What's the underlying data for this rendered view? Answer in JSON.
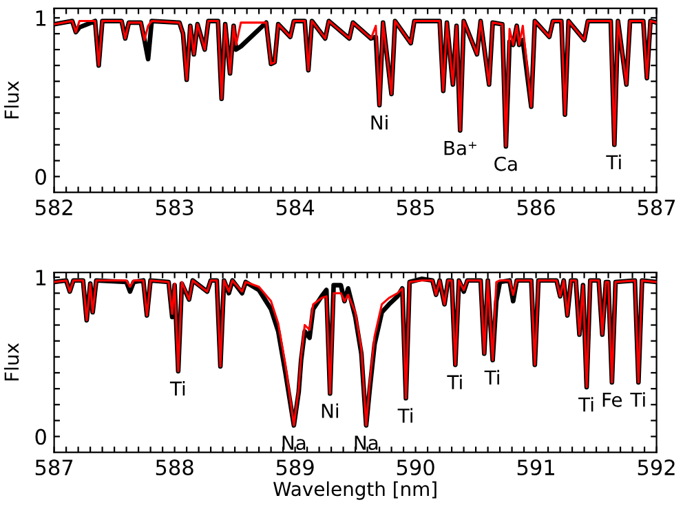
{
  "chart_data": [
    {
      "type": "line",
      "ylabel": "Flux",
      "xlim": [
        582,
        587
      ],
      "ylim": [
        -0.1,
        1.06
      ],
      "line_style": "solid",
      "marker": "none",
      "xticks": [
        582,
        {
          "value": 582.1,
          "label": null
        },
        {
          "value": 582.2,
          "label": null
        },
        {
          "value": 582.3,
          "label": null
        },
        {
          "value": 582.4,
          "label": null
        },
        {
          "value": 582.5,
          "label": null
        },
        {
          "value": 582.6,
          "label": null
        },
        {
          "value": 582.7,
          "label": null
        },
        {
          "value": 582.8,
          "label": null
        },
        {
          "value": 582.9,
          "label": null
        },
        583,
        {
          "value": 583.1,
          "label": null
        },
        {
          "value": 583.2,
          "label": null
        },
        {
          "value": 583.3,
          "label": null
        },
        {
          "value": 583.4,
          "label": null
        },
        {
          "value": 583.5,
          "label": null
        },
        {
          "value": 583.6,
          "label": null
        },
        {
          "value": 583.7,
          "label": null
        },
        {
          "value": 583.8,
          "label": null
        },
        {
          "value": 583.9,
          "label": null
        },
        584,
        {
          "value": 584.1,
          "label": null
        },
        {
          "value": 584.2,
          "label": null
        },
        {
          "value": 584.3,
          "label": null
        },
        {
          "value": 584.4,
          "label": null
        },
        {
          "value": 584.5,
          "label": null
        },
        {
          "value": 584.6,
          "label": null
        },
        {
          "value": 584.7,
          "label": null
        },
        {
          "value": 584.8,
          "label": null
        },
        {
          "value": 584.9,
          "label": null
        },
        585,
        {
          "value": 585.1,
          "label": null
        },
        {
          "value": 585.2,
          "label": null
        },
        {
          "value": 585.3,
          "label": null
        },
        {
          "value": 585.4,
          "label": null
        },
        {
          "value": 585.5,
          "label": null
        },
        {
          "value": 585.6,
          "label": null
        },
        {
          "value": 585.7,
          "label": null
        },
        {
          "value": 585.8,
          "label": null
        },
        {
          "value": 585.9,
          "label": null
        },
        586,
        {
          "value": 586.1,
          "label": null
        },
        {
          "value": 586.2,
          "label": null
        },
        {
          "value": 586.3,
          "label": null
        },
        {
          "value": 586.4,
          "label": null
        },
        {
          "value": 586.5,
          "label": null
        },
        {
          "value": 586.6,
          "label": null
        },
        {
          "value": 586.7,
          "label": null
        },
        {
          "value": 586.8,
          "label": null
        },
        {
          "value": 586.9,
          "label": null
        },
        587
      ],
      "yticks": [
        0,
        {
          "value": 0.1,
          "label": null
        },
        {
          "value": 0.2,
          "label": null
        },
        {
          "value": 0.3,
          "label": null
        },
        {
          "value": 0.4,
          "label": null
        },
        {
          "value": 0.5,
          "label": null
        },
        {
          "value": 0.6,
          "label": null
        },
        {
          "value": 0.7,
          "label": null
        },
        {
          "value": 0.8,
          "label": null
        },
        {
          "value": 0.9,
          "label": null
        },
        1
      ],
      "x": [
        582.0,
        582.15,
        582.18,
        582.21,
        582.34,
        582.37,
        582.4,
        582.56,
        582.59,
        582.62,
        582.72,
        582.75,
        582.78,
        582.81,
        583.04,
        583.07,
        583.1,
        583.13,
        583.16,
        583.19,
        583.25,
        583.28,
        583.36,
        583.39,
        583.42,
        583.46,
        583.49,
        583.51,
        583.55,
        583.76,
        583.8,
        583.83,
        583.86,
        583.96,
        583.99,
        584.08,
        584.11,
        584.14,
        584.25,
        584.28,
        584.45,
        584.48,
        584.63,
        584.67,
        584.7,
        584.73,
        584.8,
        584.83,
        584.96,
        584.99,
        585.2,
        585.23,
        585.26,
        585.31,
        585.34,
        585.37,
        585.4,
        585.51,
        585.54,
        585.61,
        585.64,
        585.72,
        585.75,
        585.78,
        585.81,
        585.84,
        585.86,
        585.89,
        585.96,
        585.99,
        586.11,
        586.14,
        586.21,
        586.24,
        586.27,
        586.4,
        586.43,
        586.62,
        586.65,
        586.68,
        586.75,
        586.78,
        586.89,
        586.92,
        586.95,
        587.0
      ],
      "series": [
        {
          "color": "#000000",
          "values": [
            0.96,
            0.98,
            0.91,
            0.94,
            0.98,
            0.7,
            0.98,
            0.98,
            0.87,
            0.97,
            0.97,
            0.86,
            0.74,
            0.98,
            0.97,
            0.9,
            0.61,
            0.95,
            0.77,
            0.96,
            0.8,
            0.98,
            0.98,
            0.49,
            0.96,
            0.65,
            0.95,
            0.8,
            0.82,
            0.97,
            0.71,
            0.72,
            0.96,
            0.88,
            0.98,
            0.98,
            0.67,
            0.98,
            0.87,
            0.98,
            0.87,
            0.97,
            0.87,
            0.88,
            0.45,
            0.97,
            0.52,
            0.98,
            0.84,
            0.98,
            0.98,
            0.54,
            0.97,
            0.58,
            0.95,
            0.29,
            0.98,
            0.77,
            0.98,
            0.58,
            0.97,
            0.96,
            0.19,
            0.85,
            0.83,
            0.95,
            0.83,
            0.86,
            0.44,
            0.98,
            0.88,
            0.98,
            0.98,
            0.39,
            0.98,
            0.86,
            0.98,
            0.98,
            0.2,
            0.98,
            0.58,
            0.98,
            0.98,
            0.62,
            0.98,
            0.97
          ]
        },
        {
          "color": "#ff0000",
          "values": [
            0.96,
            0.98,
            0.91,
            0.98,
            0.98,
            0.7,
            0.98,
            0.98,
            0.87,
            0.97,
            0.97,
            0.86,
            0.95,
            0.98,
            0.97,
            0.9,
            0.61,
            0.95,
            0.77,
            0.96,
            0.8,
            0.98,
            0.98,
            0.49,
            0.96,
            0.65,
            0.95,
            0.83,
            0.97,
            0.97,
            0.71,
            0.72,
            0.96,
            0.88,
            0.98,
            0.98,
            0.67,
            0.98,
            0.87,
            0.98,
            0.87,
            0.97,
            0.87,
            0.95,
            0.45,
            0.97,
            0.52,
            0.98,
            0.84,
            0.98,
            0.98,
            0.54,
            0.97,
            0.58,
            0.95,
            0.29,
            0.98,
            0.77,
            0.98,
            0.58,
            0.97,
            0.96,
            0.19,
            0.93,
            0.83,
            0.95,
            0.83,
            0.95,
            0.44,
            0.98,
            0.88,
            0.98,
            0.98,
            0.39,
            0.98,
            0.86,
            0.98,
            0.98,
            0.2,
            0.98,
            0.58,
            0.98,
            0.98,
            0.62,
            0.98,
            0.97
          ]
        }
      ],
      "annotations": [
        {
          "text": "Ni",
          "x": 584.7,
          "y": 0.45
        },
        {
          "text": "Ba⁺",
          "x": 585.37,
          "y": 0.29
        },
        {
          "text": "Ca",
          "x": 585.75,
          "y": 0.19
        },
        {
          "text": "Ti",
          "x": 586.65,
          "y": 0.2
        }
      ]
    },
    {
      "type": "line",
      "xlabel": "Wavelength [nm]",
      "ylabel": "Flux",
      "xlim": [
        587,
        592
      ],
      "ylim": [
        -0.1,
        1.03
      ],
      "line_style": "solid",
      "marker": "none",
      "xticks": [
        587,
        {
          "value": 587.1,
          "label": null
        },
        {
          "value": 587.2,
          "label": null
        },
        {
          "value": 587.3,
          "label": null
        },
        {
          "value": 587.4,
          "label": null
        },
        {
          "value": 587.5,
          "label": null
        },
        {
          "value": 587.6,
          "label": null
        },
        {
          "value": 587.7,
          "label": null
        },
        {
          "value": 587.8,
          "label": null
        },
        {
          "value": 587.9,
          "label": null
        },
        588,
        {
          "value": 588.1,
          "label": null
        },
        {
          "value": 588.2,
          "label": null
        },
        {
          "value": 588.3,
          "label": null
        },
        {
          "value": 588.4,
          "label": null
        },
        {
          "value": 588.5,
          "label": null
        },
        {
          "value": 588.6,
          "label": null
        },
        {
          "value": 588.7,
          "label": null
        },
        {
          "value": 588.8,
          "label": null
        },
        {
          "value": 588.9,
          "label": null
        },
        589,
        {
          "value": 589.1,
          "label": null
        },
        {
          "value": 589.2,
          "label": null
        },
        {
          "value": 589.3,
          "label": null
        },
        {
          "value": 589.4,
          "label": null
        },
        {
          "value": 589.5,
          "label": null
        },
        {
          "value": 589.6,
          "label": null
        },
        {
          "value": 589.7,
          "label": null
        },
        {
          "value": 589.8,
          "label": null
        },
        {
          "value": 589.9,
          "label": null
        },
        590,
        {
          "value": 590.1,
          "label": null
        },
        {
          "value": 590.2,
          "label": null
        },
        {
          "value": 590.3,
          "label": null
        },
        {
          "value": 590.4,
          "label": null
        },
        {
          "value": 590.5,
          "label": null
        },
        {
          "value": 590.6,
          "label": null
        },
        {
          "value": 590.7,
          "label": null
        },
        {
          "value": 590.8,
          "label": null
        },
        {
          "value": 590.9,
          "label": null
        },
        591,
        {
          "value": 591.1,
          "label": null
        },
        {
          "value": 591.2,
          "label": null
        },
        {
          "value": 591.3,
          "label": null
        },
        {
          "value": 591.4,
          "label": null
        },
        {
          "value": 591.5,
          "label": null
        },
        {
          "value": 591.6,
          "label": null
        },
        {
          "value": 591.7,
          "label": null
        },
        {
          "value": 591.8,
          "label": null
        },
        {
          "value": 591.9,
          "label": null
        },
        592
      ],
      "yticks": [
        0,
        {
          "value": 0.1,
          "label": null
        },
        {
          "value": 0.2,
          "label": null
        },
        {
          "value": 0.3,
          "label": null
        },
        {
          "value": 0.4,
          "label": null
        },
        {
          "value": 0.5,
          "label": null
        },
        {
          "value": 0.6,
          "label": null
        },
        {
          "value": 0.7,
          "label": null
        },
        {
          "value": 0.8,
          "label": null
        },
        {
          "value": 0.9,
          "label": null
        },
        1
      ],
      "x": [
        587.0,
        587.1,
        587.13,
        587.16,
        587.24,
        587.27,
        587.3,
        587.32,
        587.35,
        587.6,
        587.63,
        587.66,
        587.74,
        587.77,
        587.8,
        587.95,
        587.98,
        588.0,
        588.03,
        588.06,
        588.12,
        588.15,
        588.27,
        588.3,
        588.35,
        588.38,
        588.41,
        588.45,
        588.48,
        588.56,
        588.59,
        588.7,
        588.8,
        588.86,
        588.92,
        588.99,
        589.03,
        589.05,
        589.08,
        589.12,
        589.15,
        589.22,
        589.26,
        589.29,
        589.32,
        589.38,
        589.41,
        589.44,
        589.5,
        589.55,
        589.59,
        589.62,
        589.66,
        589.72,
        589.78,
        589.85,
        589.89,
        589.92,
        589.95,
        590.05,
        590.14,
        590.17,
        590.2,
        590.24,
        590.27,
        590.3,
        590.33,
        590.36,
        590.4,
        590.43,
        590.54,
        590.57,
        590.6,
        590.64,
        590.67,
        590.7,
        590.78,
        590.81,
        590.84,
        590.96,
        590.99,
        591.02,
        591.17,
        591.2,
        591.23,
        591.26,
        591.29,
        591.33,
        591.36,
        591.39,
        591.42,
        591.45,
        591.52,
        591.55,
        591.58,
        591.6,
        591.63,
        591.66,
        591.82,
        591.85,
        591.88,
        592.0
      ],
      "series": [
        {
          "color": "#000000",
          "values": [
            0.97,
            0.98,
            0.91,
            0.98,
            0.98,
            0.73,
            0.96,
            0.78,
            0.98,
            0.97,
            0.91,
            0.97,
            0.98,
            0.76,
            0.98,
            0.97,
            0.75,
            0.95,
            0.41,
            0.96,
            0.86,
            0.98,
            0.91,
            0.98,
            0.98,
            0.44,
            0.98,
            0.9,
            0.98,
            0.9,
            0.97,
            0.92,
            0.8,
            0.66,
            0.4,
            0.07,
            0.28,
            0.48,
            0.66,
            0.62,
            0.8,
            0.88,
            0.92,
            0.27,
            0.95,
            0.95,
            0.85,
            0.93,
            0.75,
            0.52,
            0.07,
            0.3,
            0.58,
            0.78,
            0.83,
            0.88,
            0.93,
            0.24,
            0.97,
            0.99,
            0.98,
            0.89,
            0.98,
            0.83,
            0.98,
            0.98,
            0.45,
            0.98,
            0.91,
            0.98,
            0.98,
            0.52,
            0.98,
            0.48,
            0.85,
            0.97,
            0.98,
            0.85,
            0.98,
            0.98,
            0.45,
            0.98,
            0.98,
            0.88,
            0.98,
            0.76,
            0.98,
            0.98,
            0.64,
            0.95,
            0.31,
            0.98,
            0.98,
            0.64,
            0.97,
            0.97,
            0.34,
            0.97,
            0.98,
            0.34,
            0.98,
            0.97
          ]
        },
        {
          "color": "#ff0000",
          "values": [
            0.97,
            0.98,
            0.91,
            0.98,
            0.98,
            0.73,
            0.96,
            0.78,
            0.98,
            0.98,
            0.94,
            0.98,
            0.98,
            0.76,
            0.98,
            0.97,
            0.77,
            0.96,
            0.41,
            0.97,
            0.86,
            0.98,
            0.91,
            0.98,
            0.98,
            0.44,
            0.98,
            0.91,
            0.98,
            0.91,
            0.97,
            0.94,
            0.85,
            0.71,
            0.45,
            0.07,
            0.3,
            0.5,
            0.7,
            0.67,
            0.83,
            0.87,
            0.88,
            0.27,
            0.9,
            0.9,
            0.85,
            0.89,
            0.78,
            0.55,
            0.07,
            0.34,
            0.63,
            0.83,
            0.87,
            0.9,
            0.93,
            0.24,
            0.97,
            0.98,
            0.98,
            0.89,
            0.98,
            0.83,
            0.98,
            0.98,
            0.45,
            0.98,
            0.92,
            0.98,
            0.98,
            0.52,
            0.98,
            0.48,
            0.97,
            0.98,
            0.98,
            0.89,
            0.98,
            0.98,
            0.45,
            0.98,
            0.98,
            0.88,
            0.98,
            0.76,
            0.98,
            0.98,
            0.64,
            0.95,
            0.31,
            0.98,
            0.98,
            0.64,
            0.97,
            0.97,
            0.34,
            0.97,
            0.98,
            0.34,
            0.98,
            0.97
          ]
        }
      ],
      "annotations": [
        {
          "text": "Ti",
          "x": 588.03,
          "y": 0.41
        },
        {
          "text": "Na",
          "x": 588.99,
          "y": 0.07
        },
        {
          "text": "Ni",
          "x": 589.29,
          "y": 0.27
        },
        {
          "text": "Na",
          "x": 589.59,
          "y": 0.07
        },
        {
          "text": "Ti",
          "x": 589.92,
          "y": 0.24
        },
        {
          "text": "Ti",
          "x": 590.33,
          "y": 0.45
        },
        {
          "text": "Ti",
          "x": 590.64,
          "y": 0.48
        },
        {
          "text": "Ti",
          "x": 591.42,
          "y": 0.31
        },
        {
          "text": "Fe",
          "x": 591.63,
          "y": 0.34
        },
        {
          "text": "Ti",
          "x": 591.85,
          "y": 0.34
        }
      ]
    }
  ]
}
